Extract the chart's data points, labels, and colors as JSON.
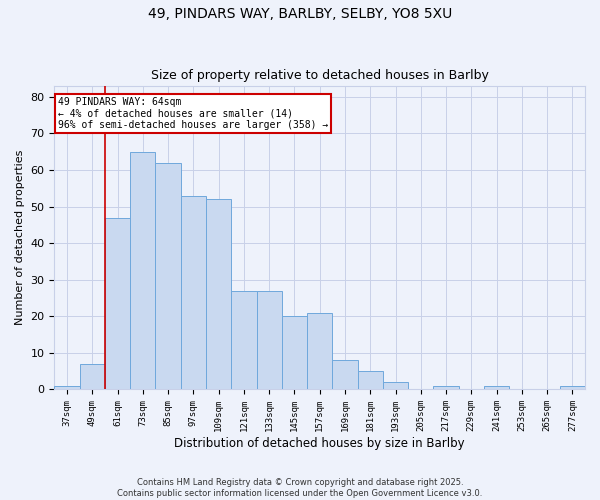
{
  "title1": "49, PINDARS WAY, BARLBY, SELBY, YO8 5XU",
  "title2": "Size of property relative to detached houses in Barlby",
  "xlabel": "Distribution of detached houses by size in Barlby",
  "ylabel": "Number of detached properties",
  "categories": [
    "37sqm",
    "49sqm",
    "61sqm",
    "73sqm",
    "85sqm",
    "97sqm",
    "109sqm",
    "121sqm",
    "133sqm",
    "145sqm",
    "157sqm",
    "169sqm",
    "181sqm",
    "193sqm",
    "205sqm",
    "217sqm",
    "229sqm",
    "241sqm",
    "253sqm",
    "265sqm",
    "277sqm"
  ],
  "values": [
    1,
    7,
    47,
    65,
    62,
    53,
    52,
    27,
    27,
    20,
    21,
    8,
    5,
    2,
    0,
    1,
    0,
    1,
    0,
    0,
    1
  ],
  "bar_color": "#c9d9f0",
  "bar_edge_color": "#6fa8dc",
  "red_line_index": 2,
  "annotation_title": "49 PINDARS WAY: 64sqm",
  "annotation_line1": "← 4% of detached houses are smaller (14)",
  "annotation_line2": "96% of semi-detached houses are larger (358) →",
  "annotation_box_color": "#ffffff",
  "annotation_box_edge": "#cc0000",
  "ylim": [
    0,
    83
  ],
  "yticks": [
    0,
    10,
    20,
    30,
    40,
    50,
    60,
    70,
    80
  ],
  "background_color": "#eef2fb",
  "grid_color": "#c8d0e8",
  "footer_line1": "Contains HM Land Registry data © Crown copyright and database right 2025.",
  "footer_line2": "Contains public sector information licensed under the Open Government Licence v3.0."
}
